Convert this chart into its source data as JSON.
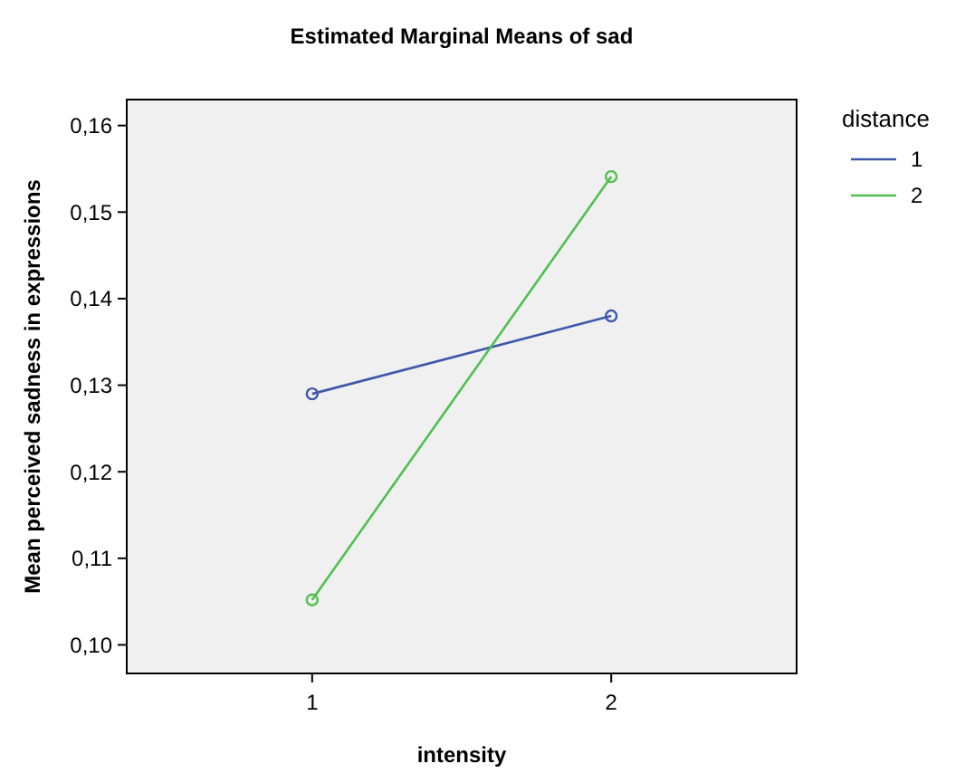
{
  "chart_data": {
    "type": "line",
    "title": "Estimated Marginal Means of sad",
    "xlabel": "intensity",
    "ylabel": "Mean perceived sadness in expressions",
    "legend_title": "distance",
    "categories": [
      "1",
      "2"
    ],
    "series": [
      {
        "name": "1",
        "color": "#3e58ac",
        "values": [
          0.129,
          0.138
        ]
      },
      {
        "name": "2",
        "color": "#50c050",
        "values": [
          0.1052,
          0.1541
        ]
      }
    ],
    "ylim": [
      0.0967,
      0.163
    ],
    "yticks": [
      {
        "value": 0.1,
        "label": "0,10"
      },
      {
        "value": 0.11,
        "label": "0,11"
      },
      {
        "value": 0.12,
        "label": "0,12"
      },
      {
        "value": 0.13,
        "label": "0,13"
      },
      {
        "value": 0.14,
        "label": "0,14"
      },
      {
        "value": 0.15,
        "label": "0,15"
      },
      {
        "value": 0.16,
        "label": "0,16"
      }
    ],
    "marker": "circle",
    "legend": "top right",
    "grid": false
  }
}
